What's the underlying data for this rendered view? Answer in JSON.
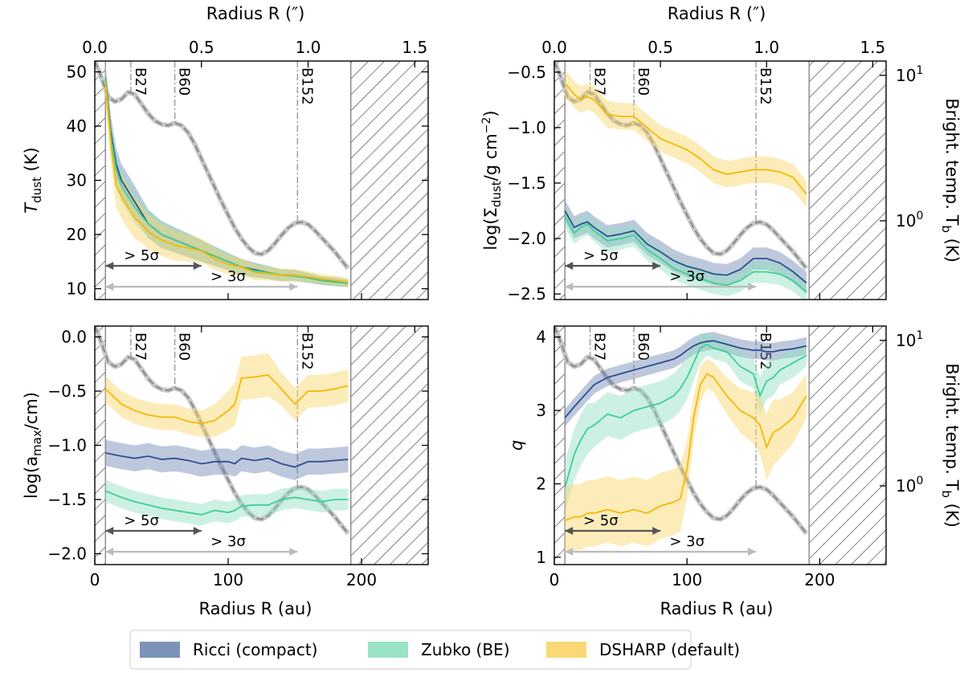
{
  "colors": {
    "ricci": "#2f4f8f",
    "ricci_band": "#6f86b3",
    "zubko": "#3fcf95",
    "zubko_band": "#8fe0be",
    "dsharp": "#f5b800",
    "dsharp_band": "#f9d466",
    "profile": "#8c8c8c",
    "marker": "#999999",
    "arrow5": "#555555",
    "arrow3": "#bbbbbb"
  },
  "legend": [
    {
      "key": "ricci",
      "label": "Ricci (compact)"
    },
    {
      "key": "zubko",
      "label": "Zubko (BE)"
    },
    {
      "key": "dsharp",
      "label": "DSHARP (default)"
    }
  ],
  "shared": {
    "xlabel": "Radius R (au)",
    "x_top_label": "Radius R (″)",
    "xlim": [
      0,
      250
    ],
    "x_ticks": [
      0,
      100,
      200
    ],
    "x_top_ticks": [
      "0.0",
      "0.5",
      "1.0",
      "1.5"
    ],
    "x_top_lim": [
      0,
      1.563
    ],
    "x_top_tick_values": [
      0,
      0.5,
      1.0,
      1.5
    ],
    "inner_mask_au": 8,
    "outer_mask_au": 192,
    "rings": [
      {
        "label": "B27",
        "r": 27
      },
      {
        "label": "B60",
        "r": 60
      },
      {
        "label": "B152",
        "r": 152
      }
    ],
    "arrow_5sigma": {
      "label": "> 5σ",
      "from": 8,
      "to": 80
    },
    "arrow_3sigma": {
      "label": "> 3σ",
      "from": 8,
      "to": 152
    },
    "right_label": "Bright. temp. T_b (K)",
    "right_ticks": [
      "10^0",
      "10^1"
    ],
    "bright_profile": {
      "r": [
        0,
        5,
        10,
        15,
        20,
        25,
        30,
        35,
        40,
        45,
        50,
        55,
        60,
        65,
        70,
        75,
        80,
        85,
        90,
        95,
        100,
        105,
        110,
        115,
        120,
        125,
        130,
        135,
        140,
        145,
        150,
        155,
        160,
        165,
        170,
        175,
        180,
        185,
        190
      ],
      "tb_frac": [
        1.0,
        0.93,
        0.85,
        0.83,
        0.84,
        0.87,
        0.86,
        0.82,
        0.78,
        0.75,
        0.735,
        0.73,
        0.74,
        0.73,
        0.7,
        0.65,
        0.59,
        0.53,
        0.47,
        0.41,
        0.355,
        0.3,
        0.255,
        0.22,
        0.195,
        0.19,
        0.205,
        0.235,
        0.27,
        0.3,
        0.32,
        0.325,
        0.315,
        0.29,
        0.26,
        0.23,
        0.2,
        0.165,
        0.13
      ]
    }
  },
  "chart_data": [
    {
      "type": "line",
      "panel": "temperature",
      "ylabel": "T_dust (K)",
      "ylim": [
        8,
        52
      ],
      "y_ticks": [
        10,
        20,
        30,
        40,
        50
      ],
      "has_right_axis": false,
      "x": [
        8,
        12,
        16,
        20,
        25,
        30,
        35,
        40,
        50,
        60,
        70,
        80,
        90,
        100,
        110,
        120,
        130,
        140,
        150,
        160,
        170,
        180,
        190
      ],
      "series": [
        {
          "name": "Ricci (compact)",
          "key": "ricci",
          "values": [
            49,
            39,
            33,
            30,
            28,
            26,
            24,
            22,
            20,
            19,
            18,
            17,
            16,
            15,
            14,
            13.5,
            13,
            12.5,
            12.5,
            12,
            11.5,
            11.3,
            11
          ],
          "band": [
            2.5,
            3,
            3,
            3,
            3,
            3,
            2.8,
            2.6,
            2.5,
            2.3,
            2.2,
            2,
            1.8,
            1.6,
            1.5,
            1.3,
            1.2,
            1.1,
            1,
            0.9,
            0.8,
            0.8,
            0.7
          ]
        },
        {
          "name": "Zubko (BE)",
          "key": "zubko",
          "values": [
            49,
            38,
            32,
            29,
            27,
            25,
            23.5,
            22,
            20,
            19,
            18,
            17,
            16,
            15,
            14,
            13.3,
            13,
            12.5,
            12.3,
            12,
            11.5,
            11.2,
            11
          ],
          "band": [
            2.5,
            3,
            3,
            3,
            3,
            3,
            2.8,
            2.6,
            2.5,
            2.3,
            2.2,
            2,
            1.8,
            1.6,
            1.5,
            1.3,
            1.2,
            1.1,
            1,
            0.9,
            0.8,
            0.8,
            0.7
          ]
        },
        {
          "name": "DSHARP (default)",
          "key": "dsharp",
          "values": [
            48,
            37,
            29,
            27,
            25,
            23,
            22,
            20.5,
            19,
            18,
            17.5,
            17,
            15.5,
            14.5,
            14,
            13,
            12.8,
            12.5,
            12.5,
            12.2,
            11.8,
            11.5,
            11.2
          ],
          "band": [
            3.5,
            4,
            4,
            4,
            4,
            3.8,
            3.5,
            3.2,
            3,
            2.8,
            2.5,
            2.2,
            2,
            1.8,
            1.6,
            1.4,
            1.3,
            1.2,
            1.1,
            1,
            0.9,
            0.9,
            0.8
          ]
        }
      ]
    },
    {
      "type": "line",
      "panel": "surface-density",
      "ylabel": "log(Σ_dust/g cm^−2)",
      "ylim": [
        -2.55,
        -0.4
      ],
      "y_ticks": [
        -0.5,
        -1.0,
        -1.5,
        -2.0,
        -2.5
      ],
      "has_right_axis": true,
      "x": [
        8,
        15,
        20,
        25,
        30,
        40,
        50,
        60,
        70,
        80,
        90,
        100,
        110,
        120,
        130,
        140,
        150,
        160,
        170,
        180,
        190
      ],
      "series": [
        {
          "name": "Ricci (compact)",
          "key": "ricci",
          "values": [
            -1.75,
            -1.9,
            -1.87,
            -1.85,
            -1.9,
            -1.98,
            -1.96,
            -1.93,
            -2.05,
            -2.12,
            -2.2,
            -2.25,
            -2.28,
            -2.32,
            -2.33,
            -2.28,
            -2.18,
            -2.18,
            -2.22,
            -2.3,
            -2.4
          ],
          "band": [
            0.1,
            0.1,
            0.1,
            0.1,
            0.1,
            0.1,
            0.1,
            0.1,
            0.1,
            0.1,
            0.1,
            0.1,
            0.1,
            0.1,
            0.1,
            0.1,
            0.1,
            0.1,
            0.1,
            0.1,
            0.1
          ]
        },
        {
          "name": "Zubko (BE)",
          "key": "zubko",
          "values": [
            -1.8,
            -1.95,
            -1.9,
            -1.87,
            -1.93,
            -2.02,
            -2.0,
            -1.97,
            -2.1,
            -2.18,
            -2.27,
            -2.32,
            -2.36,
            -2.4,
            -2.42,
            -2.38,
            -2.3,
            -2.3,
            -2.32,
            -2.38,
            -2.48
          ],
          "band": [
            0.1,
            0.1,
            0.1,
            0.1,
            0.1,
            0.1,
            0.1,
            0.1,
            0.1,
            0.1,
            0.1,
            0.1,
            0.1,
            0.1,
            0.1,
            0.1,
            0.1,
            0.1,
            0.1,
            0.1,
            0.1
          ]
        },
        {
          "name": "DSHARP (default)",
          "key": "dsharp",
          "values": [
            -0.6,
            -0.7,
            -0.75,
            -0.72,
            -0.75,
            -0.88,
            -0.9,
            -0.9,
            -1.0,
            -1.1,
            -1.15,
            -1.2,
            -1.28,
            -1.38,
            -1.42,
            -1.4,
            -1.38,
            -1.38,
            -1.4,
            -1.45,
            -1.6
          ],
          "band": [
            0.12,
            0.12,
            0.12,
            0.12,
            0.12,
            0.12,
            0.12,
            0.12,
            0.12,
            0.12,
            0.12,
            0.12,
            0.12,
            0.12,
            0.12,
            0.12,
            0.12,
            0.12,
            0.12,
            0.12,
            0.12
          ]
        }
      ]
    },
    {
      "type": "line",
      "panel": "max-grain-size",
      "ylabel": "log(a_max/cm)",
      "ylim": [
        -2.1,
        0.1
      ],
      "y_ticks": [
        0.0,
        -0.5,
        -1.0,
        -1.5,
        -2.0
      ],
      "has_right_axis": false,
      "x": [
        8,
        20,
        30,
        40,
        50,
        60,
        70,
        80,
        90,
        100,
        105,
        110,
        120,
        130,
        140,
        150,
        160,
        170,
        180,
        190
      ],
      "series": [
        {
          "name": "Ricci (compact)",
          "key": "ricci",
          "values": [
            -1.07,
            -1.1,
            -1.12,
            -1.1,
            -1.13,
            -1.12,
            -1.14,
            -1.17,
            -1.15,
            -1.15,
            -1.17,
            -1.12,
            -1.14,
            -1.12,
            -1.17,
            -1.2,
            -1.15,
            -1.15,
            -1.14,
            -1.13
          ],
          "band": [
            0.12,
            0.12,
            0.12,
            0.12,
            0.12,
            0.12,
            0.12,
            0.12,
            0.12,
            0.12,
            0.12,
            0.12,
            0.12,
            0.12,
            0.12,
            0.12,
            0.12,
            0.12,
            0.12,
            0.12
          ]
        },
        {
          "name": "Zubko (BE)",
          "key": "zubko",
          "values": [
            -1.42,
            -1.48,
            -1.52,
            -1.55,
            -1.58,
            -1.6,
            -1.62,
            -1.64,
            -1.6,
            -1.62,
            -1.6,
            -1.56,
            -1.55,
            -1.55,
            -1.5,
            -1.48,
            -1.5,
            -1.52,
            -1.5,
            -1.5
          ],
          "band": [
            0.1,
            0.1,
            0.1,
            0.1,
            0.1,
            0.1,
            0.1,
            0.1,
            0.1,
            0.1,
            0.1,
            0.1,
            0.1,
            0.1,
            0.1,
            0.1,
            0.1,
            0.1,
            0.1,
            0.1
          ]
        },
        {
          "name": "DSHARP (default)",
          "key": "dsharp",
          "values": [
            -0.48,
            -0.62,
            -0.68,
            -0.72,
            -0.74,
            -0.74,
            -0.78,
            -0.8,
            -0.77,
            -0.68,
            -0.62,
            -0.38,
            -0.37,
            -0.35,
            -0.48,
            -0.62,
            -0.5,
            -0.5,
            -0.48,
            -0.45
          ],
          "band": [
            0.12,
            0.12,
            0.12,
            0.12,
            0.12,
            0.12,
            0.12,
            0.12,
            0.15,
            0.18,
            0.2,
            0.2,
            0.2,
            0.2,
            0.15,
            0.15,
            0.15,
            0.15,
            0.15,
            0.15
          ]
        }
      ]
    },
    {
      "type": "line",
      "panel": "spectral-index",
      "ylabel": "q",
      "ylim": [
        0.9,
        4.15
      ],
      "y_ticks": [
        1,
        2,
        3,
        4
      ],
      "has_right_axis": true,
      "x": [
        8,
        15,
        20,
        25,
        30,
        40,
        50,
        60,
        70,
        80,
        90,
        95,
        100,
        105,
        110,
        115,
        120,
        130,
        140,
        150,
        155,
        160,
        165,
        170,
        180,
        190
      ],
      "series": [
        {
          "name": "Ricci (compact)",
          "key": "ricci",
          "values": [
            2.9,
            3.05,
            3.15,
            3.25,
            3.35,
            3.45,
            3.5,
            3.55,
            3.6,
            3.65,
            3.7,
            3.75,
            3.82,
            3.88,
            3.92,
            3.94,
            3.95,
            3.9,
            3.85,
            3.82,
            3.82,
            3.8,
            3.8,
            3.82,
            3.84,
            3.88
          ],
          "band": [
            0.12,
            0.12,
            0.12,
            0.12,
            0.12,
            0.12,
            0.12,
            0.12,
            0.12,
            0.12,
            0.12,
            0.12,
            0.12,
            0.12,
            0.12,
            0.12,
            0.12,
            0.12,
            0.12,
            0.12,
            0.12,
            0.12,
            0.12,
            0.12,
            0.12,
            0.12
          ]
        },
        {
          "name": "Zubko (BE)",
          "key": "zubko",
          "values": [
            1.95,
            2.4,
            2.6,
            2.75,
            2.8,
            2.95,
            2.9,
            3.0,
            3.05,
            3.1,
            3.2,
            3.3,
            3.45,
            3.65,
            3.85,
            3.9,
            3.85,
            3.8,
            3.6,
            3.5,
            3.2,
            3.4,
            3.45,
            3.55,
            3.65,
            3.75
          ],
          "band": [
            0.35,
            0.35,
            0.35,
            0.35,
            0.3,
            0.3,
            0.3,
            0.3,
            0.3,
            0.3,
            0.3,
            0.3,
            0.3,
            0.25,
            0.2,
            0.15,
            0.15,
            0.15,
            0.2,
            0.2,
            0.25,
            0.25,
            0.25,
            0.2,
            0.2,
            0.15
          ]
        },
        {
          "name": "DSHARP (default)",
          "key": "dsharp",
          "values": [
            1.5,
            1.55,
            1.55,
            1.6,
            1.6,
            1.65,
            1.6,
            1.65,
            1.6,
            1.7,
            1.75,
            1.8,
            2.2,
            2.9,
            3.35,
            3.5,
            3.45,
            3.2,
            3.0,
            2.9,
            2.8,
            2.5,
            2.7,
            2.75,
            2.9,
            3.2
          ],
          "band": [
            0.45,
            0.45,
            0.45,
            0.45,
            0.45,
            0.45,
            0.45,
            0.45,
            0.45,
            0.45,
            0.45,
            0.45,
            0.4,
            0.3,
            0.25,
            0.2,
            0.2,
            0.25,
            0.3,
            0.35,
            0.4,
            0.45,
            0.45,
            0.4,
            0.35,
            0.3
          ]
        }
      ]
    }
  ]
}
